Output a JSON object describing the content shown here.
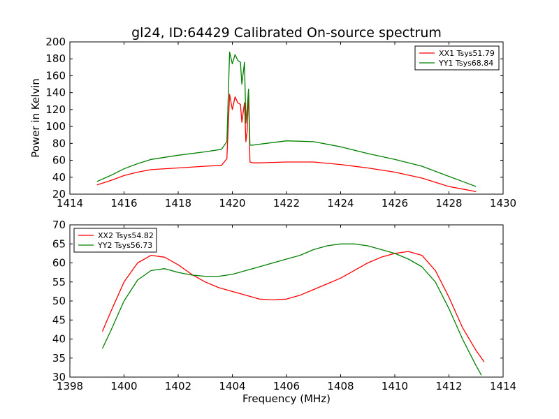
{
  "title": "gl24, ID:64429 Calibrated On-source spectrum",
  "chart_data": [
    {
      "type": "line",
      "ylabel": "Power in Kelvin",
      "xlabel": "",
      "xlim": [
        1414,
        1430
      ],
      "ylim": [
        20,
        200
      ],
      "xticks": [
        1414,
        1416,
        1418,
        1420,
        1422,
        1424,
        1426,
        1428,
        1430
      ],
      "yticks": [
        20,
        40,
        60,
        80,
        100,
        120,
        140,
        160,
        180,
        200
      ],
      "legend_position": "top-right",
      "series": [
        {
          "name": "XX1 Tsys51.79",
          "color": "#ff0000",
          "x": [
            1415,
            1415.5,
            1416,
            1416.5,
            1417,
            1418,
            1419,
            1419.6,
            1419.8,
            1419.9,
            1420.0,
            1420.1,
            1420.2,
            1420.3,
            1420.35,
            1420.45,
            1420.5,
            1420.55,
            1420.6,
            1420.65,
            1420.75,
            1421,
            1422,
            1423,
            1424,
            1425,
            1426,
            1427,
            1428,
            1428.5,
            1429
          ],
          "y": [
            31,
            36,
            42,
            46,
            49,
            51,
            53,
            54,
            62,
            138,
            120,
            135,
            128,
            126,
            105,
            128,
            82,
            95,
            144,
            58,
            57,
            57,
            58,
            58,
            55,
            51,
            46,
            39,
            29,
            26,
            23
          ]
        },
        {
          "name": "YY1 Tsys68.84",
          "color": "#008000",
          "x": [
            1415,
            1415.5,
            1416,
            1416.5,
            1417,
            1418,
            1419,
            1419.6,
            1419.8,
            1419.9,
            1420.0,
            1420.1,
            1420.2,
            1420.3,
            1420.35,
            1420.45,
            1420.5,
            1420.55,
            1420.6,
            1420.65,
            1420.75,
            1421,
            1422,
            1423,
            1424,
            1425,
            1426,
            1427,
            1428,
            1428.5,
            1429
          ],
          "y": [
            35,
            42,
            50,
            56,
            61,
            66,
            70,
            73,
            82,
            188,
            174,
            185,
            178,
            176,
            150,
            176,
            104,
            122,
            144,
            78,
            78,
            79,
            83,
            82,
            76,
            68,
            61,
            53,
            41,
            35,
            29
          ]
        }
      ]
    },
    {
      "type": "line",
      "ylabel": "",
      "xlabel": "Frequency (MHz)",
      "xlim": [
        1398,
        1414
      ],
      "ylim": [
        30,
        70
      ],
      "xticks": [
        1398,
        1400,
        1402,
        1404,
        1406,
        1408,
        1410,
        1412,
        1414
      ],
      "yticks": [
        30,
        35,
        40,
        45,
        50,
        55,
        60,
        65,
        70
      ],
      "legend_position": "top-left",
      "series": [
        {
          "name": "XX2 Tsys54.82",
          "color": "#ff0000",
          "x": [
            1399.2,
            1399.5,
            1400,
            1400.5,
            1401,
            1401.5,
            1402,
            1402.5,
            1403,
            1403.5,
            1404,
            1404.5,
            1405,
            1405.5,
            1406,
            1406.5,
            1407,
            1407.5,
            1408,
            1408.5,
            1409,
            1409.5,
            1410,
            1410.5,
            1411,
            1411.5,
            1412,
            1412.5,
            1413,
            1413.3
          ],
          "y": [
            42,
            47,
            55,
            60,
            62,
            61.5,
            59.5,
            57,
            55,
            53.5,
            52.5,
            51.5,
            50.5,
            50.3,
            50.5,
            51.5,
            53,
            54.5,
            56,
            58,
            60,
            61.5,
            62.5,
            63,
            62,
            58,
            51,
            43,
            37,
            34
          ]
        },
        {
          "name": "YY2 Tsys56.73",
          "color": "#008000",
          "x": [
            1399.2,
            1399.5,
            1400,
            1400.5,
            1401,
            1401.5,
            1402,
            1402.5,
            1403,
            1403.5,
            1404,
            1404.5,
            1405,
            1405.5,
            1406,
            1406.5,
            1407,
            1407.5,
            1408,
            1408.5,
            1409,
            1409.5,
            1410,
            1410.5,
            1411,
            1411.5,
            1412,
            1412.5,
            1413,
            1413.2
          ],
          "y": [
            37.5,
            42,
            50,
            55.5,
            58,
            58.5,
            57.5,
            56.8,
            56.5,
            56.5,
            57,
            58,
            59,
            60,
            61,
            62,
            63.5,
            64.5,
            65,
            65,
            64.5,
            63.5,
            62.5,
            61,
            59,
            55,
            48,
            40,
            33,
            30.5
          ]
        }
      ]
    }
  ]
}
